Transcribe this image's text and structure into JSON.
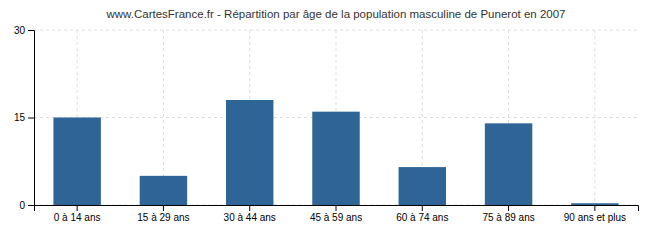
{
  "chart_data": {
    "type": "bar",
    "title": "www.CartesFrance.fr - Répartition par âge de la population masculine de Punerot en 2007",
    "categories": [
      "0 à 14 ans",
      "15 à 29 ans",
      "30 à 44 ans",
      "45 à 59 ans",
      "60 à 74 ans",
      "75 à 89 ans",
      "90 ans et plus"
    ],
    "values": [
      15,
      5,
      18,
      16,
      6.5,
      14,
      0.3
    ],
    "color": "#2e6596",
    "ylim": [
      0,
      30
    ],
    "yticks": [
      0,
      15,
      30
    ],
    "grid": true
  }
}
